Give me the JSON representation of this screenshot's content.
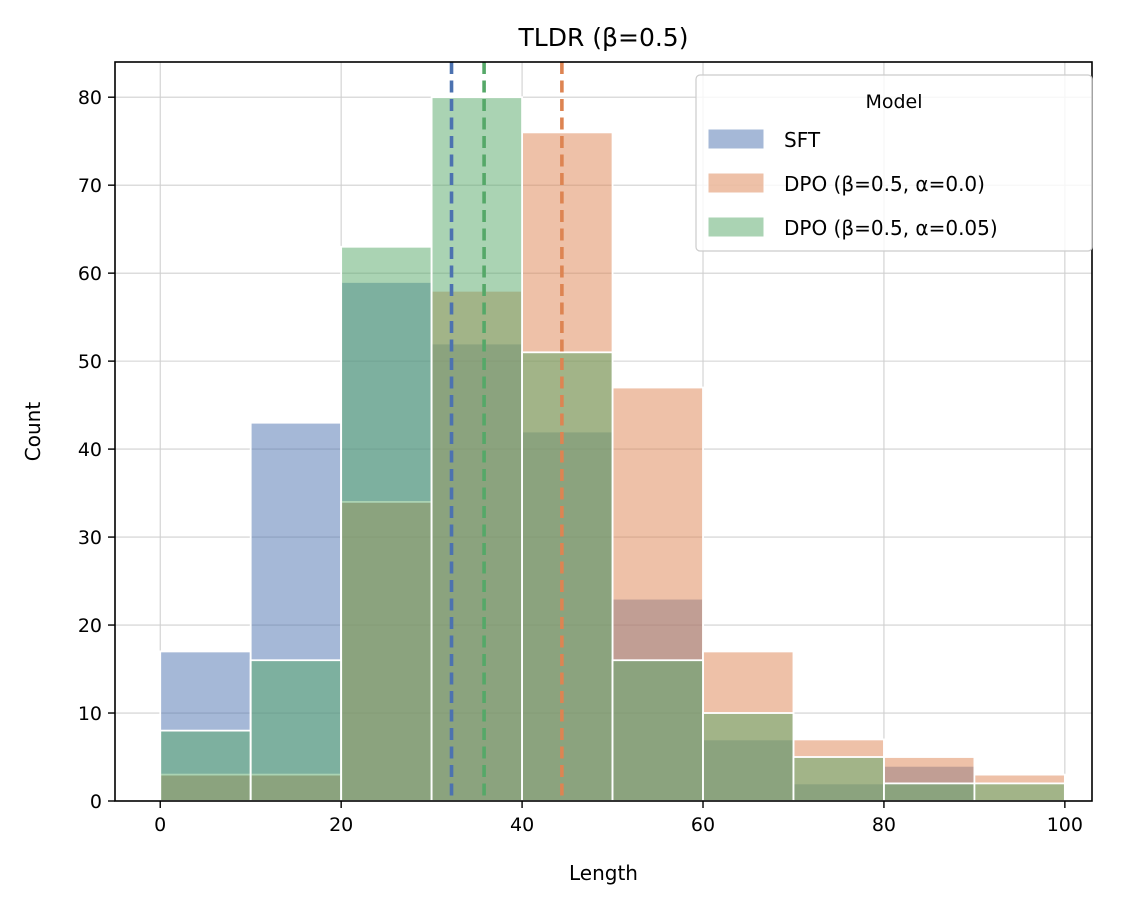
{
  "chart_data": {
    "type": "histogram",
    "title": "TLDR (β=0.5)",
    "xlabel": "Length",
    "ylabel": "Count",
    "xlim": [
      -5,
      103
    ],
    "ylim": [
      0,
      84
    ],
    "xticks": [
      0,
      20,
      40,
      60,
      80,
      100
    ],
    "yticks": [
      0,
      10,
      20,
      30,
      40,
      50,
      60,
      70,
      80
    ],
    "grid": true,
    "bin_edges": [
      0,
      10,
      20,
      30,
      40,
      50,
      60,
      70,
      80,
      90,
      100
    ],
    "legend": {
      "title": "Model",
      "position": "top-right"
    },
    "series": [
      {
        "name": "SFT",
        "color": "#4c72b0",
        "counts": [
          17,
          43,
          59,
          52,
          42,
          23,
          7,
          2,
          4,
          0
        ],
        "mean": 32.2
      },
      {
        "name": "DPO (β=0.5, α=0.0)",
        "color": "#dd8452",
        "counts": [
          3,
          3,
          34,
          58,
          76,
          47,
          17,
          7,
          5,
          3
        ],
        "mean": 44.4
      },
      {
        "name": "DPO (β=0.5, α=0.05)",
        "color": "#55a868",
        "counts": [
          8,
          16,
          63,
          80,
          51,
          16,
          10,
          5,
          2,
          2
        ],
        "mean": 35.8
      }
    ]
  }
}
